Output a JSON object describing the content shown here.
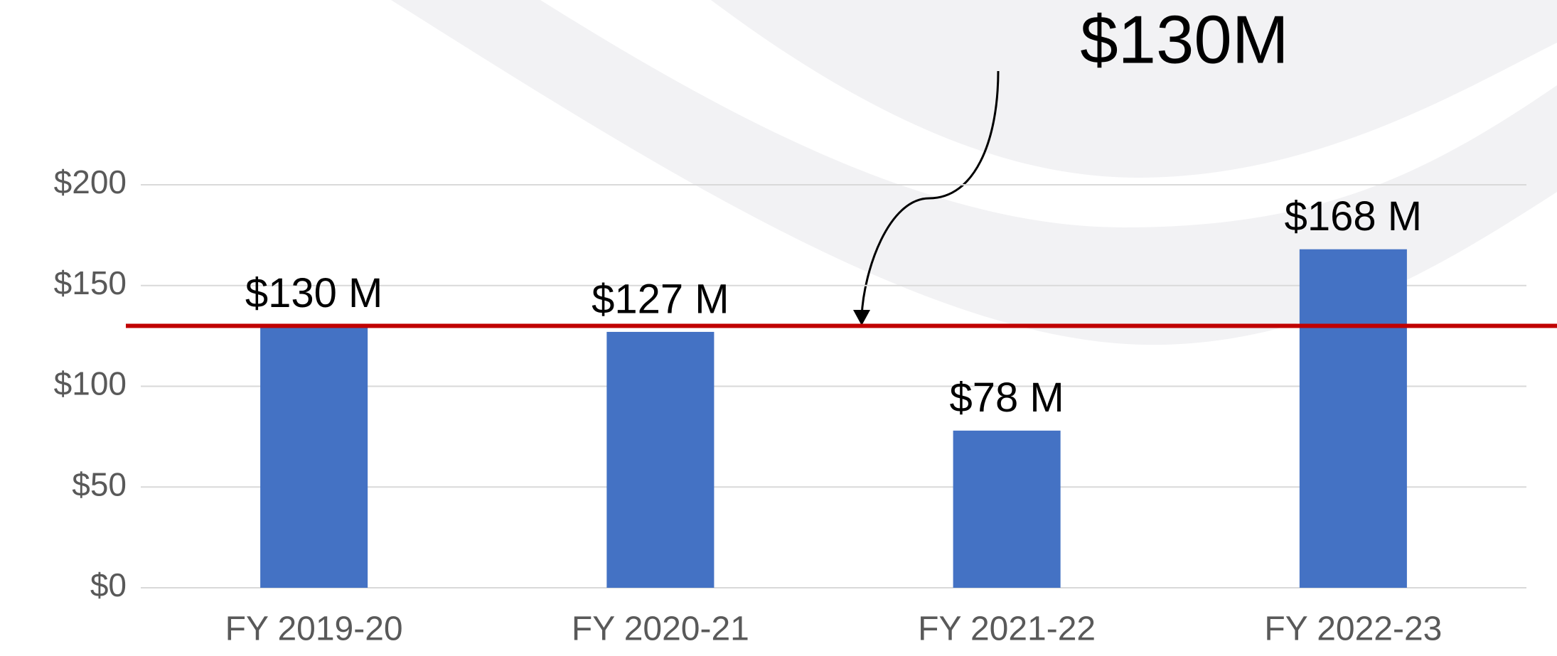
{
  "chart_data": {
    "type": "bar",
    "categories": [
      "FY 2019-20",
      "FY 2020-21",
      "FY 2021-22",
      "FY 2022-23"
    ],
    "values": [
      130,
      127,
      78,
      168
    ],
    "value_labels": [
      "$130 M",
      "$127 M",
      "$78 M",
      "$168 M"
    ],
    "color": "#4472c4",
    "ylim": [
      0,
      200
    ],
    "yticks": [
      {
        "value": 0,
        "label": "$0"
      },
      {
        "value": 50,
        "label": "$50"
      },
      {
        "value": 100,
        "label": "$100"
      },
      {
        "value": 150,
        "label": "$150"
      },
      {
        "value": 200,
        "label": "$200"
      }
    ],
    "grid": true,
    "reference_line": {
      "value": 130,
      "label": "$130M",
      "color": "#c00000"
    }
  }
}
